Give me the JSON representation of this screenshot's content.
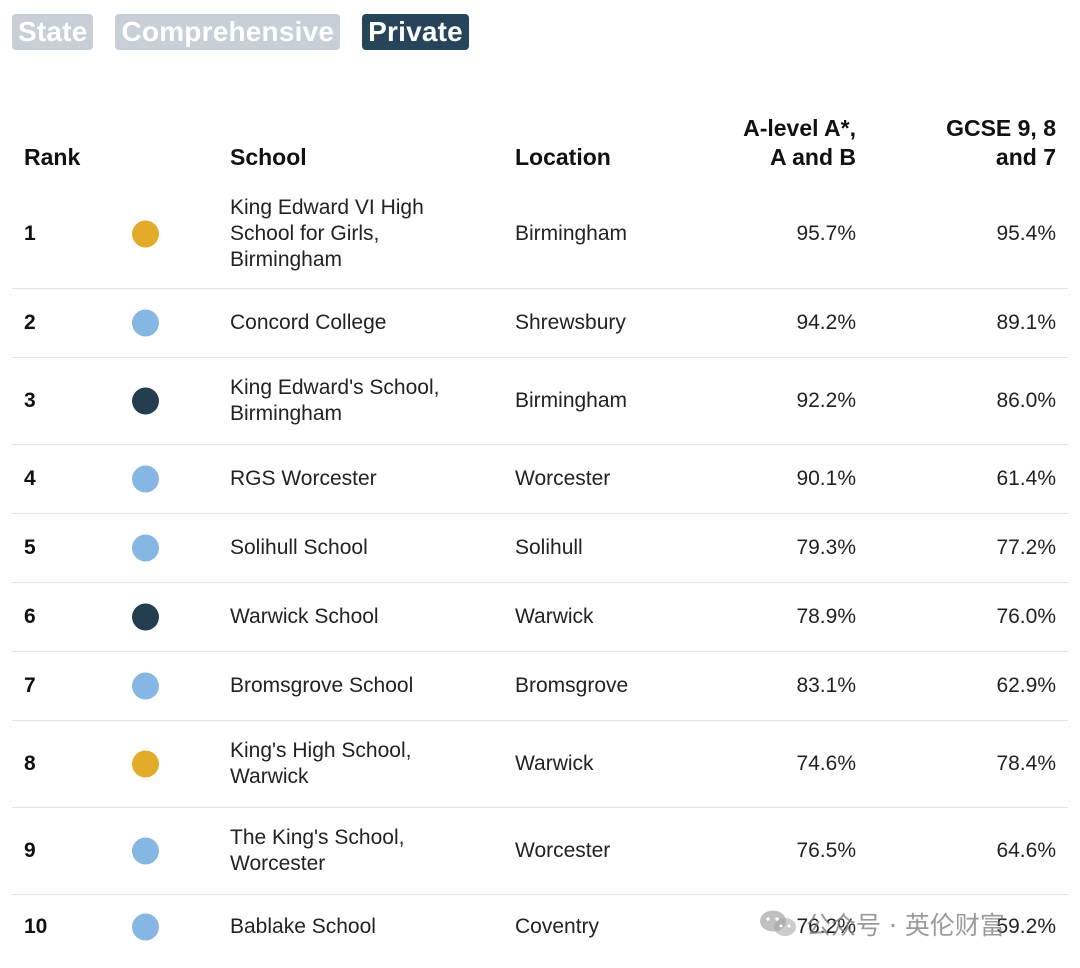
{
  "filters": [
    {
      "label": "State",
      "active": false
    },
    {
      "label": "Comprehensive",
      "active": false
    },
    {
      "label": "Private",
      "active": true
    }
  ],
  "table": {
    "headers": {
      "rank": "Rank",
      "school": "School",
      "location": "Location",
      "alevel_line1": "A-level A*,",
      "alevel_line2": "A and B",
      "gcse_line1": "GCSE 9, 8",
      "gcse_line2": "and 7"
    },
    "rows": [
      {
        "rank": "1",
        "dot": "#e3ab2a",
        "school_lines": [
          "King Edward VI High",
          "School for Girls,",
          "Birmingham"
        ],
        "location": "Birmingham",
        "alevel": "95.7%",
        "gcse": "95.4%"
      },
      {
        "rank": "2",
        "dot": "#86b6e3",
        "school_lines": [
          "Concord College"
        ],
        "location": "Shrewsbury",
        "alevel": "94.2%",
        "gcse": "89.1%"
      },
      {
        "rank": "3",
        "dot": "#243e50",
        "school_lines": [
          "King Edward's School,",
          "Birmingham"
        ],
        "location": "Birmingham",
        "alevel": "92.2%",
        "gcse": "86.0%"
      },
      {
        "rank": "4",
        "dot": "#86b6e3",
        "school_lines": [
          "RGS Worcester"
        ],
        "location": "Worcester",
        "alevel": "90.1%",
        "gcse": "61.4%"
      },
      {
        "rank": "5",
        "dot": "#86b6e3",
        "school_lines": [
          "Solihull School"
        ],
        "location": "Solihull",
        "alevel": "79.3%",
        "gcse": "77.2%"
      },
      {
        "rank": "6",
        "dot": "#243e50",
        "school_lines": [
          "Warwick School"
        ],
        "location": "Warwick",
        "alevel": "78.9%",
        "gcse": "76.0%"
      },
      {
        "rank": "7",
        "dot": "#86b6e3",
        "school_lines": [
          "Bromsgrove School"
        ],
        "location": "Bromsgrove",
        "alevel": "83.1%",
        "gcse": "62.9%"
      },
      {
        "rank": "8",
        "dot": "#e3ab2a",
        "school_lines": [
          "King's High School,",
          "Warwick"
        ],
        "location": "Warwick",
        "alevel": "74.6%",
        "gcse": "78.4%"
      },
      {
        "rank": "9",
        "dot": "#86b6e3",
        "school_lines": [
          "The King's School,",
          "Worcester"
        ],
        "location": "Worcester",
        "alevel": "76.5%",
        "gcse": "64.6%"
      },
      {
        "rank": "10",
        "dot": "#86b6e3",
        "school_lines": [
          "Bablake School"
        ],
        "location": "Coventry",
        "alevel": "76.2%",
        "gcse": "59.2%"
      }
    ]
  },
  "watermark": {
    "text": "公众号 · 英伦财富",
    "icon": "wechat-icon"
  }
}
